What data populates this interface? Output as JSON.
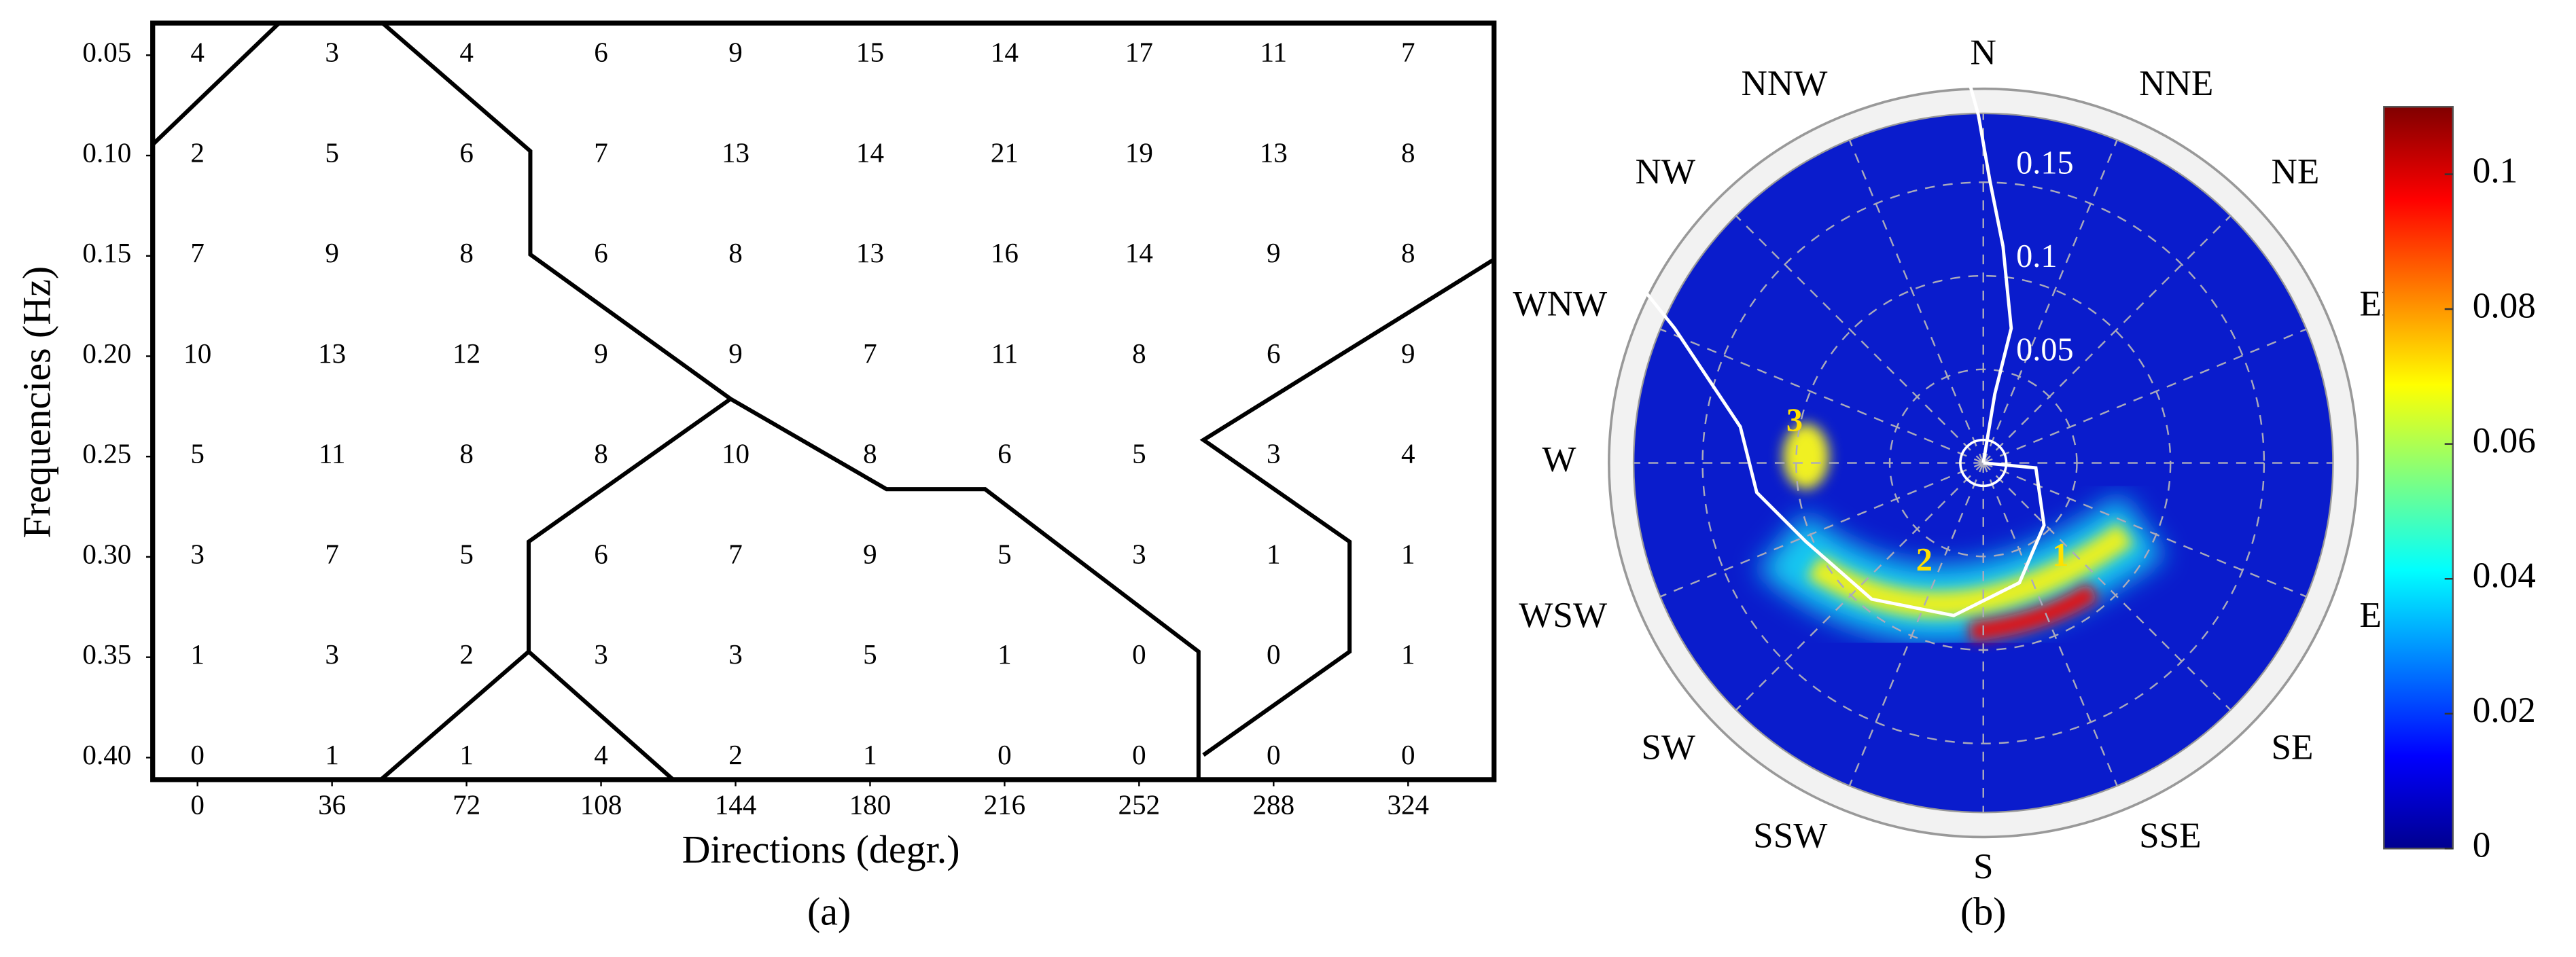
{
  "chart_data": [
    {
      "type": "grid",
      "panel_label": "(a)",
      "xlabel": "Directions (degr.)",
      "ylabel": "Frequencies (Hz)",
      "xlim": [
        -12,
        347
      ],
      "xticks": [
        0,
        36,
        72,
        108,
        144,
        180,
        216,
        252,
        288,
        324
      ],
      "ylim": [
        0.034,
        0.411
      ],
      "yticks": [
        0.05,
        {
          "value": 0.1,
          "label": "0.10"
        },
        0.15,
        {
          "value": 0.2,
          "label": "0.20"
        },
        0.25,
        {
          "value": 0.3,
          "label": "0.30"
        },
        0.35,
        {
          "value": 0.4,
          "label": "0.40"
        }
      ],
      "values": [
        [
          4,
          3,
          4,
          6,
          9,
          15,
          14,
          17,
          11,
          7
        ],
        [
          2,
          5,
          6,
          7,
          13,
          14,
          21,
          19,
          13,
          8
        ],
        [
          7,
          9,
          8,
          6,
          8,
          13,
          16,
          14,
          9,
          8
        ],
        [
          10,
          13,
          12,
          9,
          9,
          7,
          11,
          8,
          6,
          9
        ],
        [
          5,
          11,
          8,
          8,
          10,
          8,
          6,
          5,
          3,
          4
        ],
        [
          3,
          7,
          5,
          6,
          7,
          9,
          5,
          3,
          1,
          1
        ],
        [
          1,
          3,
          2,
          3,
          3,
          5,
          1,
          0,
          0,
          1
        ],
        [
          0,
          1,
          1,
          4,
          2,
          1,
          0,
          0,
          0,
          0
        ]
      ]
    },
    {
      "type": "polar",
      "panel_label": "(b)",
      "directions": [
        "N",
        "NNE",
        "NE",
        "ENE",
        "E",
        "ESE",
        "SE",
        "SSE",
        "S",
        "SSW",
        "SW",
        "WSW",
        "W",
        "WNW",
        "NW",
        "NNW"
      ],
      "rlim": [
        0,
        0.2
      ],
      "rticks": [
        0.05,
        0.1,
        0.15
      ],
      "annotations": [
        "1",
        "2",
        "3"
      ],
      "colorbar": {
        "lim": [
          0,
          0.11
        ],
        "ticks": [
          0,
          0.02,
          0.04,
          0.06,
          0.08,
          0.1
        ],
        "colormap": "jet"
      }
    }
  ]
}
